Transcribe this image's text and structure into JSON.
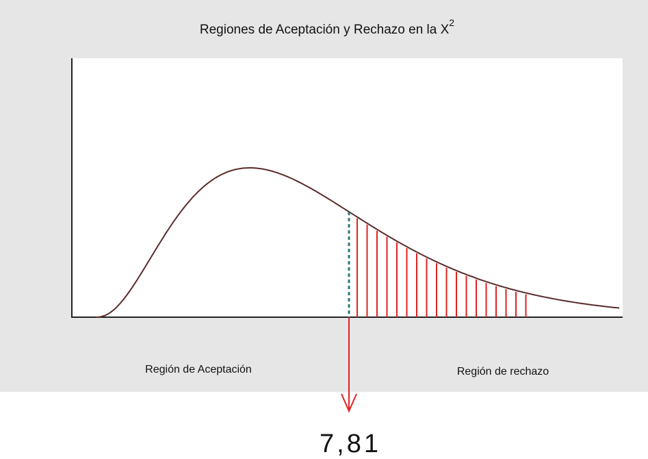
{
  "title": {
    "text": "Regiones de Aceptación y Rechazo en la X",
    "superscript": "2"
  },
  "regions": {
    "acceptance": "Región de Aceptación",
    "rejection": "Región de rechazo"
  },
  "critical_value": "7,81"
}
